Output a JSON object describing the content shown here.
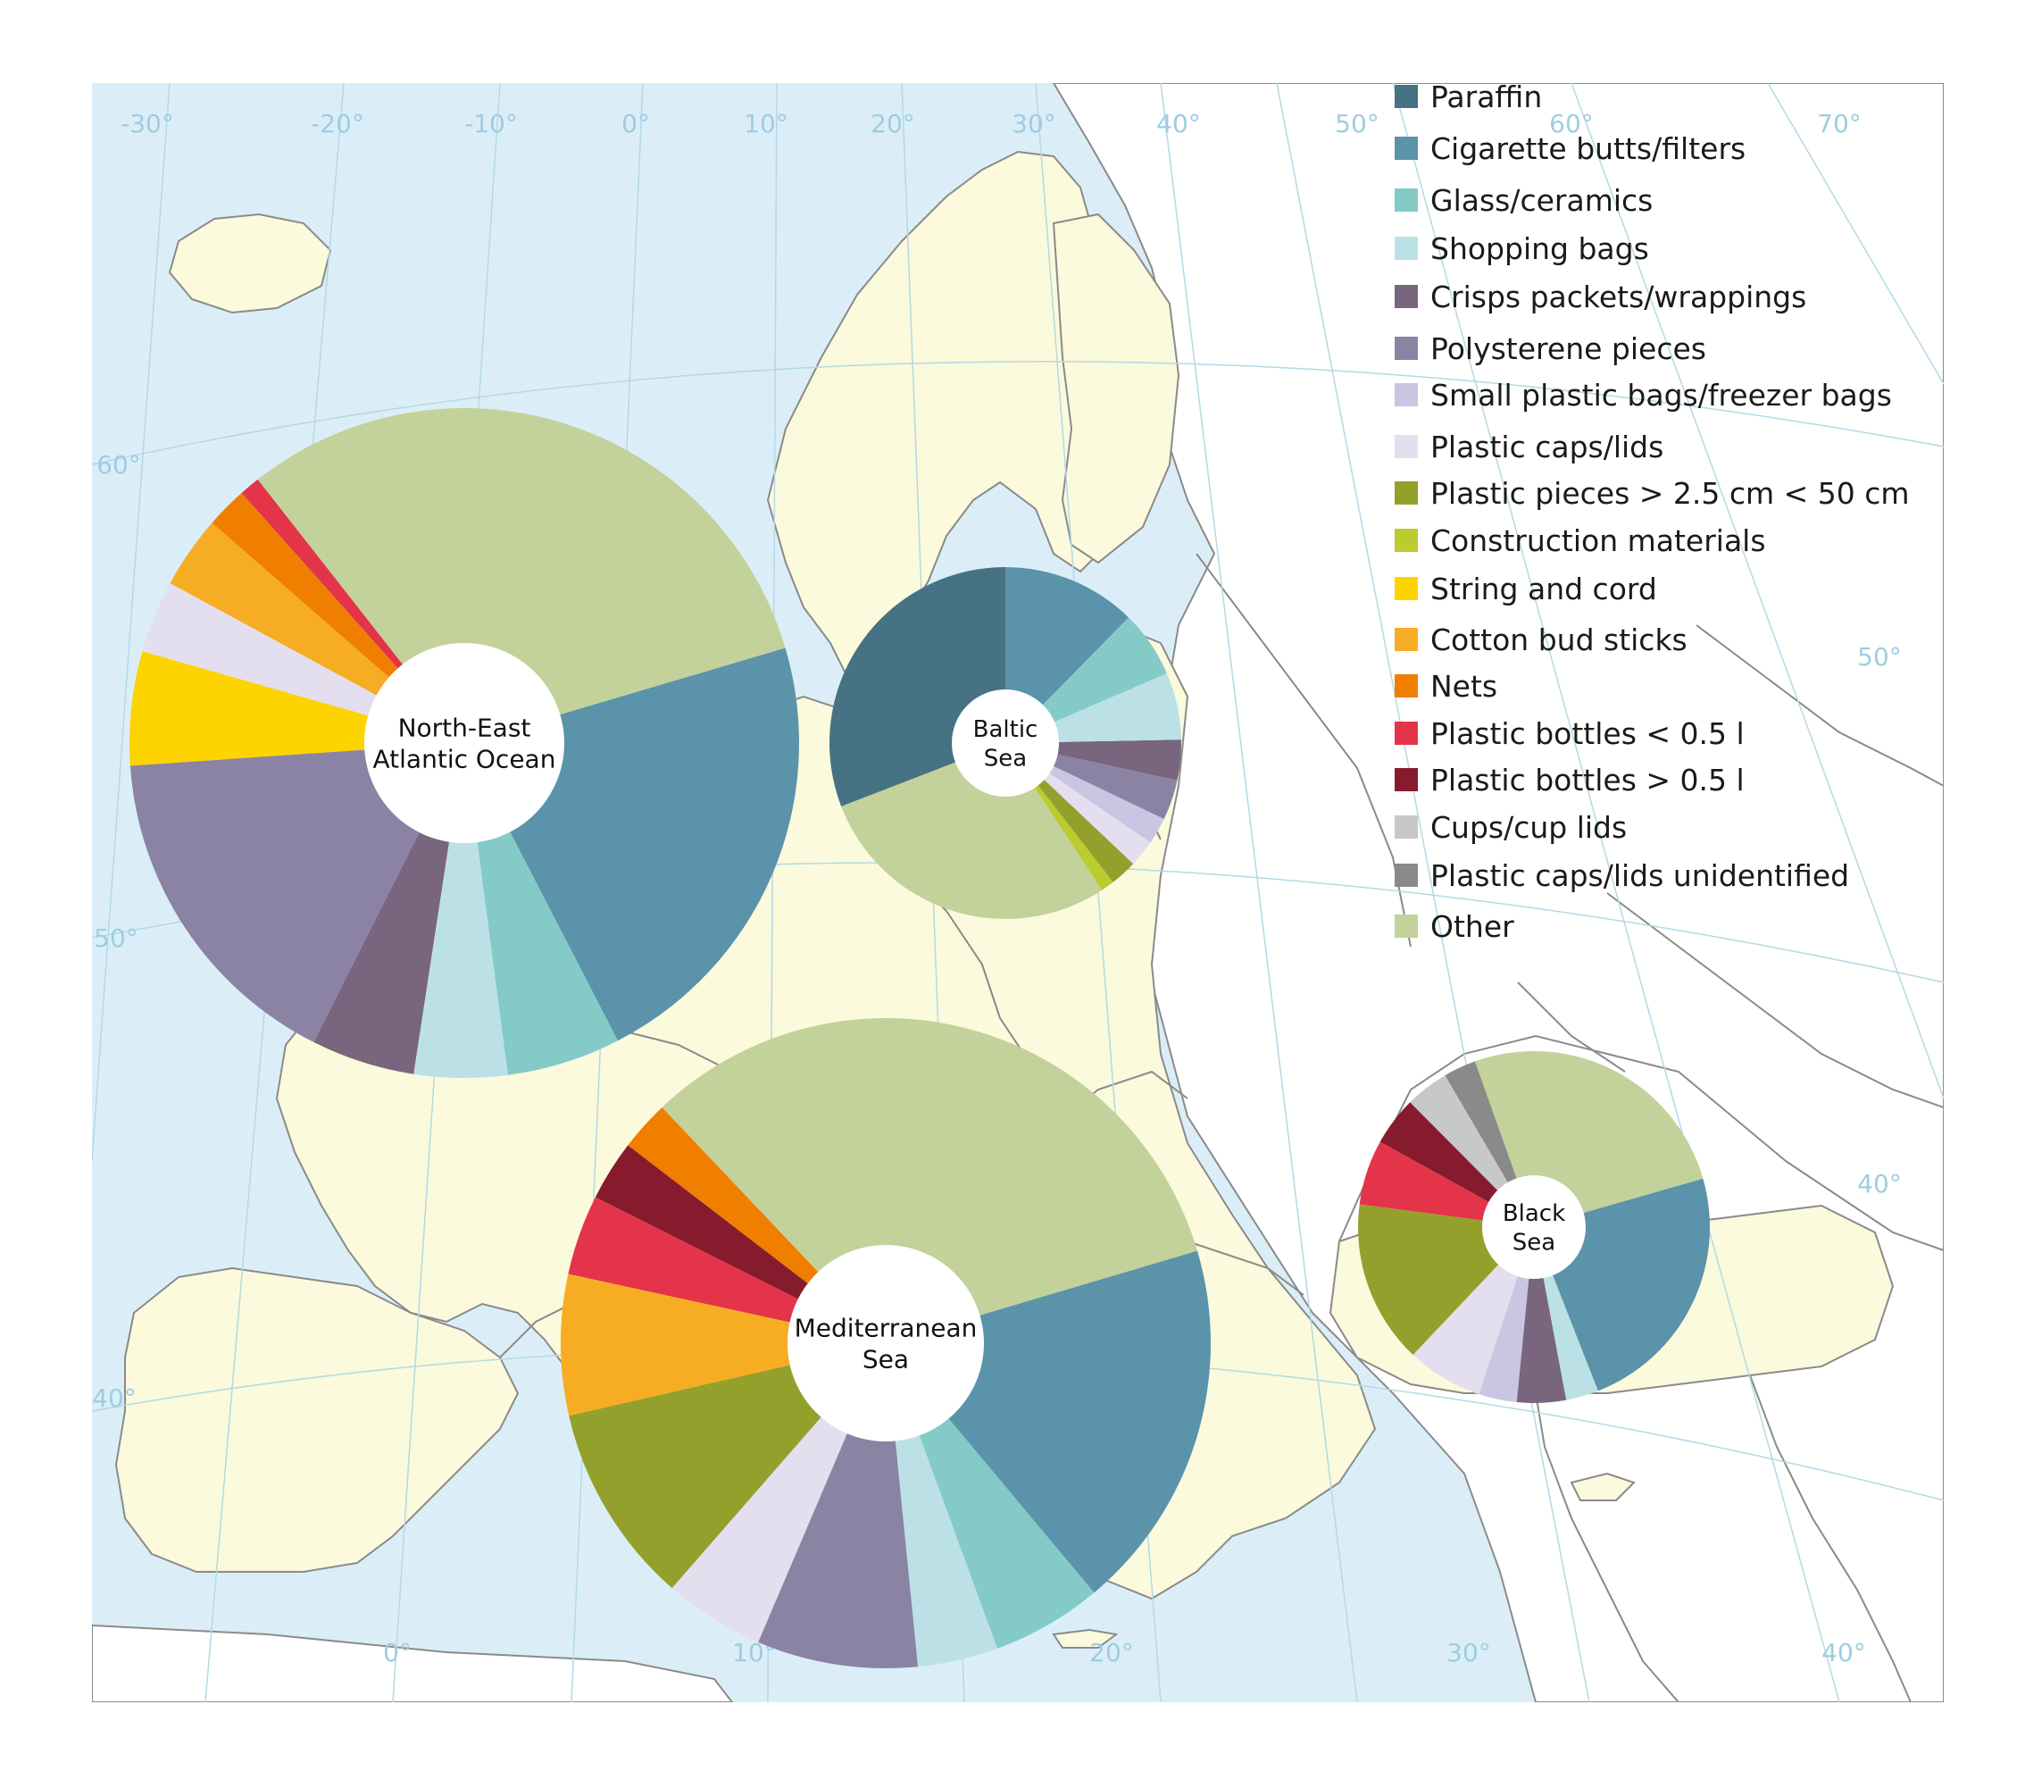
{
  "legend": [
    {
      "key": "paraffin",
      "label": "Paraffin",
      "color": "#467284"
    },
    {
      "key": "cigarette",
      "label": "Cigarette butts/filters",
      "color": "#5a93aa"
    },
    {
      "key": "glass",
      "label": "Glass/ceramics",
      "color": "#84cac7"
    },
    {
      "key": "shopping",
      "label": "Shopping bags",
      "color": "#bbe1e7"
    },
    {
      "key": "crisps",
      "label": "Crisps packets/wrappings",
      "color": "#7a657e"
    },
    {
      "key": "polystyrene",
      "label": "Polysterene pieces",
      "color": "#8a83a3"
    },
    {
      "key": "smallbags",
      "label": "Small plastic bags/freezer bags",
      "color": "#cac5e2"
    },
    {
      "key": "caps",
      "label": "Plastic caps/lids",
      "color": "#e3dfef"
    },
    {
      "key": "pieces",
      "label": "Plastic pieces > 2.5 cm < 50 cm",
      "color": "#94a02c"
    },
    {
      "key": "construction",
      "label": "Construction materials",
      "color": "#bccb2e"
    },
    {
      "key": "string",
      "label": "String and cord",
      "color": "#fdd300"
    },
    {
      "key": "cotton",
      "label": "Cotton bud sticks",
      "color": "#f7ad23"
    },
    {
      "key": "nets",
      "label": "Nets",
      "color": "#f07f00"
    },
    {
      "key": "bottles_small",
      "label": "Plastic bottles < 0.5 l",
      "color": "#e3344a"
    },
    {
      "key": "bottles_large",
      "label": "Plastic bottles > 0.5 l",
      "color": "#871b2e"
    },
    {
      "key": "cups",
      "label": "Cups/cup lids",
      "color": "#c8c8c8"
    },
    {
      "key": "caps_unid",
      "label": "Plastic caps/lids unidentified",
      "color": "#8a8a8a"
    },
    {
      "key": "other",
      "label": "Other",
      "color": "#c3d19a"
    }
  ],
  "map_colors": {
    "sea": "#dbeef8",
    "land_europe": "#fbfadc",
    "land_other": "#ffffff",
    "border": "#8a8a8a",
    "graticule": "#b3d9e6",
    "graticule_label": "#9fcde0"
  },
  "graticule_labels": {
    "top": [
      "-30°",
      "-20°",
      "-10°",
      "0°",
      "10°",
      "20°",
      "30°",
      "40°",
      "50°",
      "60°",
      "70°"
    ],
    "left": [
      "60°",
      "50°",
      "40°"
    ],
    "bottom": [
      "0°",
      "10°",
      "20°",
      "30°",
      "40°"
    ],
    "right": [
      "50°",
      "40°"
    ]
  },
  "chart_data": [
    {
      "type": "pie",
      "name": "North-East Atlantic Ocean",
      "title_lines": [
        "North-East",
        "Atlantic Ocean"
      ],
      "series": [
        {
          "category": "Other",
          "value": 31.0
        },
        {
          "category": "Plastic bottles < 0.5 l",
          "value": 1.0
        },
        {
          "category": "Nets",
          "value": 2.0
        },
        {
          "category": "Cotton bud sticks",
          "value": 3.5
        },
        {
          "category": "Plastic caps/lids",
          "value": 3.5
        },
        {
          "category": "String and cord",
          "value": 5.5
        },
        {
          "category": "Polysterene pieces",
          "value": 16.5
        },
        {
          "category": "Crisps packets/wrappings",
          "value": 5.0
        },
        {
          "category": "Shopping bags",
          "value": 4.5
        },
        {
          "category": "Glass/ceramics",
          "value": 5.5
        },
        {
          "category": "Cigarette butts/filters",
          "value": 22.0
        }
      ]
    },
    {
      "type": "pie",
      "name": "Baltic Sea",
      "title_lines": [
        "Baltic",
        "Sea"
      ],
      "series": [
        {
          "category": "Paraffin",
          "value": 25.0
        },
        {
          "category": "Other",
          "value": 23.0
        },
        {
          "category": "Construction materials",
          "value": 1.0
        },
        {
          "category": "Plastic pieces > 2.5 cm < 50 cm",
          "value": 2.0
        },
        {
          "category": "Plastic caps/lids",
          "value": 2.0
        },
        {
          "category": "Small plastic bags/freezer bags",
          "value": 2.0
        },
        {
          "category": "Polysterene pieces",
          "value": 3.0
        },
        {
          "category": "Crisps packets/wrappings",
          "value": 3.0
        },
        {
          "category": "Shopping bags",
          "value": 5.0
        },
        {
          "category": "Glass/ceramics",
          "value": 5.0
        },
        {
          "category": "Cigarette butts/filters",
          "value": 10.0
        }
      ]
    },
    {
      "type": "pie",
      "name": "Mediterranean Sea",
      "title_lines": [
        "Mediterranean",
        "Sea"
      ],
      "series": [
        {
          "category": "Other",
          "value": 32.5
        },
        {
          "category": "Nets",
          "value": 2.5
        },
        {
          "category": "Plastic bottles > 0.5 l",
          "value": 3.0
        },
        {
          "category": "Plastic bottles < 0.5 l",
          "value": 4.0
        },
        {
          "category": "Cotton bud sticks",
          "value": 7.0
        },
        {
          "category": "Plastic pieces > 2.5 cm < 50 cm",
          "value": 10.0
        },
        {
          "category": "Plastic caps/lids",
          "value": 5.0
        },
        {
          "category": "Polysterene pieces",
          "value": 8.0
        },
        {
          "category": "Shopping bags",
          "value": 4.0
        },
        {
          "category": "Glass/ceramics",
          "value": 5.5
        },
        {
          "category": "Cigarette butts/filters",
          "value": 18.5
        }
      ]
    },
    {
      "type": "pie",
      "name": "Black Sea",
      "title_lines": [
        "Black",
        "Sea"
      ],
      "series": [
        {
          "category": "Other",
          "value": 26.0
        },
        {
          "category": "Plastic caps/lids unidentified",
          "value": 3.0
        },
        {
          "category": "Cups/cup lids",
          "value": 4.0
        },
        {
          "category": "Plastic bottles > 0.5 l",
          "value": 4.5
        },
        {
          "category": "Plastic bottles < 0.5 l",
          "value": 6.0
        },
        {
          "category": "Plastic pieces > 2.5 cm < 50 cm",
          "value": 15.0
        },
        {
          "category": "Plastic caps/lids",
          "value": 7.0
        },
        {
          "category": "Small plastic bags/freezer bags",
          "value": 3.5
        },
        {
          "category": "Crisps packets/wrappings",
          "value": 4.5
        },
        {
          "category": "Shopping bags",
          "value": 3.0
        },
        {
          "category": "Cigarette butts/filters",
          "value": 23.5
        }
      ]
    }
  ]
}
